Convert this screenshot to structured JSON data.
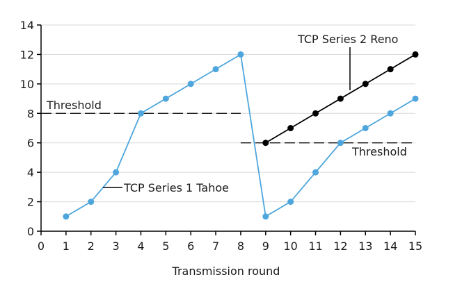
{
  "chart_data": {
    "type": "line",
    "xlabel": "Transmission round",
    "ylabel": "",
    "xlim": [
      0,
      15
    ],
    "ylim": [
      0,
      14
    ],
    "x_ticks": [
      0,
      1,
      2,
      3,
      4,
      5,
      6,
      7,
      8,
      9,
      10,
      11,
      12,
      13,
      14,
      15
    ],
    "y_ticks": [
      0,
      2,
      4,
      6,
      8,
      10,
      12,
      14
    ],
    "grid": true,
    "colors": {
      "tahoe": "#4ea6dc",
      "reno": "#000000",
      "grid": "#d9d9d9",
      "axis": "#000000"
    },
    "series": [
      {
        "name": "TCP Series 1 Tahoe",
        "color": "#4ea6dc",
        "x": [
          1,
          2,
          3,
          4,
          5,
          6,
          7,
          8,
          9,
          10,
          11,
          12,
          13,
          14,
          15
        ],
        "y": [
          1,
          2,
          4,
          8,
          9,
          10,
          11,
          12,
          1,
          2,
          4,
          6,
          7,
          8,
          9
        ]
      },
      {
        "name": "TCP Series 2 Reno",
        "color": "#000000",
        "x": [
          9,
          10,
          11,
          12,
          13,
          14,
          15
        ],
        "y": [
          6,
          7,
          8,
          9,
          10,
          11,
          12
        ]
      }
    ],
    "thresholds": [
      {
        "label": "Threshold",
        "value": 8,
        "x_from": 0,
        "x_to": 8
      },
      {
        "label": "Threshold",
        "value": 6,
        "x_from": 8,
        "x_to": 15
      }
    ]
  }
}
